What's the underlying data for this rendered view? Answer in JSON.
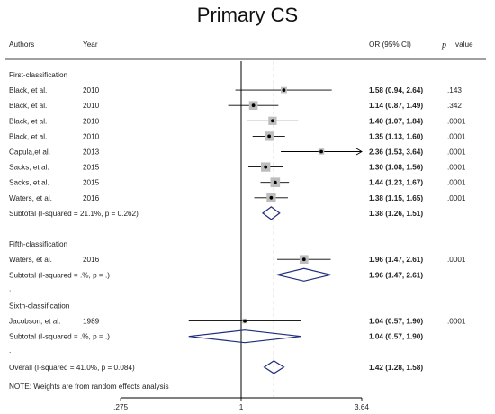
{
  "chart_data": {
    "type": "forest",
    "title": "Primary CS",
    "columns": {
      "authors": "Authors",
      "year": "Year",
      "or_ci": "OR (95% CI)",
      "p_prefix": "p",
      "p_suffix": "value"
    },
    "x_scale": "log",
    "null_value": 1,
    "overall_estimate": 1.42,
    "x_ticks": [
      {
        "value": 0.275,
        "label": ".275"
      },
      {
        "value": 1,
        "label": "1"
      },
      {
        "value": 3.64,
        "label": "3.64"
      }
    ],
    "rows": [
      {
        "kind": "group",
        "label": "First-classification"
      },
      {
        "kind": "study",
        "author": "Black, et al.",
        "year": "2010",
        "or": 1.58,
        "lo": 0.94,
        "hi": 2.64,
        "or_text": "1.58 (0.94, 2.64)",
        "p": ".143",
        "weight": 0.4
      },
      {
        "kind": "study",
        "author": "Black, et al.",
        "year": "2010",
        "or": 1.14,
        "lo": 0.87,
        "hi": 1.49,
        "or_text": "1.14 (0.87, 1.49)",
        "p": ".342",
        "weight": 0.8
      },
      {
        "kind": "study",
        "author": "Black, et al.",
        "year": "2010",
        "or": 1.4,
        "lo": 1.07,
        "hi": 1.84,
        "or_text": "1.40 (1.07, 1.84)",
        "p": ".0001",
        "weight": 0.75
      },
      {
        "kind": "study",
        "author": "Black, et al.",
        "year": "2010",
        "or": 1.35,
        "lo": 1.13,
        "hi": 1.6,
        "or_text": "1.35 (1.13, 1.60)",
        "p": ".0001",
        "weight": 0.9
      },
      {
        "kind": "study",
        "author": "Capula,et al.",
        "year": "2013",
        "or": 2.36,
        "lo": 1.53,
        "hi": 3.64,
        "or_text": "2.36 (1.53, 3.64)",
        "p": ".0001",
        "weight": 0.35,
        "arrow_right": true
      },
      {
        "kind": "study",
        "author": "Sacks, et al.",
        "year": "2015",
        "or": 1.3,
        "lo": 1.08,
        "hi": 1.56,
        "or_text": "1.30 (1.08, 1.56)",
        "p": ".0001",
        "weight": 0.9
      },
      {
        "kind": "study",
        "author": "Sacks, et al.",
        "year": "2015",
        "or": 1.44,
        "lo": 1.23,
        "hi": 1.67,
        "or_text": "1.44 (1.23, 1.67)",
        "p": ".0001",
        "weight": 0.95
      },
      {
        "kind": "study",
        "author": "Waters, et al.",
        "year": "2016",
        "or": 1.38,
        "lo": 1.15,
        "hi": 1.65,
        "or_text": "1.38 (1.15, 1.65)",
        "p": ".0001",
        "weight": 0.9
      },
      {
        "kind": "subtotal",
        "label": "Subtotal  (I-squared = 21.1%, p = 0.262)",
        "or": 1.38,
        "lo": 1.26,
        "hi": 1.51,
        "or_text": "1.38 (1.26, 1.51)"
      },
      {
        "kind": "dot"
      },
      {
        "kind": "group",
        "label": "Fifth-classification"
      },
      {
        "kind": "study",
        "author": "Waters, et al.",
        "year": "2016",
        "or": 1.96,
        "lo": 1.47,
        "hi": 2.61,
        "or_text": "1.96 (1.47, 2.61)",
        "p": ".0001",
        "weight": 0.8
      },
      {
        "kind": "subtotal",
        "label": "Subtotal  (I-squared = .%, p = .)",
        "or": 1.96,
        "lo": 1.47,
        "hi": 2.61,
        "or_text": "1.96 (1.47, 2.61)"
      },
      {
        "kind": "dot"
      },
      {
        "kind": "group",
        "label": "Sixth-classification"
      },
      {
        "kind": "study",
        "author": "Jacobson, et al.",
        "year": "1989",
        "or": 1.04,
        "lo": 0.57,
        "hi": 1.9,
        "or_text": "1.04 (0.57, 1.90)",
        "p": ".0001",
        "weight": 0.2
      },
      {
        "kind": "subtotal",
        "label": "Subtotal  (I-squared = .%, p = .)",
        "or": 1.04,
        "lo": 0.57,
        "hi": 1.9,
        "or_text": "1.04 (0.57, 1.90)"
      },
      {
        "kind": "dot"
      },
      {
        "kind": "overall",
        "label": "Overall  (I-squared = 41.0%, p = 0.084)",
        "or": 1.42,
        "lo": 1.28,
        "hi": 1.58,
        "or_text": "1.42 (1.28, 1.58)"
      },
      {
        "kind": "blank"
      }
    ],
    "note": "NOTE: Weights are from random effects analysis",
    "colors": {
      "text": "#222222",
      "line": "#000000",
      "box": "#bdbdbd",
      "diamond": "#1f2d7a",
      "ref_line": "#8b1a1a"
    }
  }
}
